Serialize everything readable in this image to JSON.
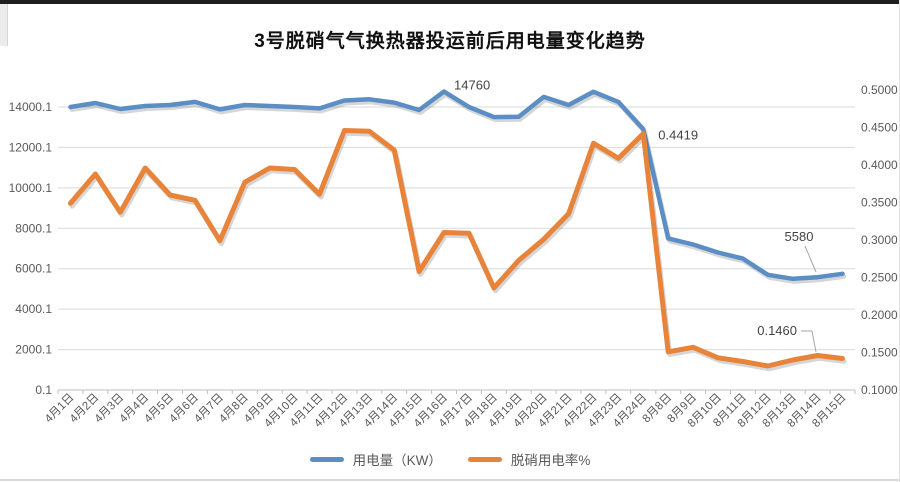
{
  "chart_data": {
    "type": "line",
    "title": "3号脱硝气气换热器投运前后用电量变化趋势",
    "grid": "horizontal",
    "legend_position": "bottom",
    "categories": [
      "4月1日",
      "4月2日",
      "4月3日",
      "4月4日",
      "4月5日",
      "4月6日",
      "4月7日",
      "4月8日",
      "4月9日",
      "4月10日",
      "4月11日",
      "4月12日",
      "4月13日",
      "4月14日",
      "4月15日",
      "4月16日",
      "4月17日",
      "4月18日",
      "4月19日",
      "4月20日",
      "4月21日",
      "4月22日",
      "4月23日",
      "4月24日",
      "8月8日",
      "8月9日",
      "8月10日",
      "8月11日",
      "8月12日",
      "8月13日",
      "8月14日",
      "8月15日"
    ],
    "series": [
      {
        "name": "用电量（KW）",
        "axis": "left",
        "color": "#5b8ec4",
        "values": [
          14000,
          14200,
          13900,
          14050,
          14100,
          14250,
          13880,
          14100,
          14050,
          14000,
          13930,
          14320,
          14380,
          14220,
          13850,
          14760,
          14000,
          13500,
          13520,
          14500,
          14100,
          14750,
          14250,
          12900,
          7500,
          7200,
          6800,
          6500,
          5700,
          5500,
          5580,
          5750
        ]
      },
      {
        "name": "脱硝用电率%",
        "axis": "right",
        "color": "#e8833a",
        "values": [
          0.349,
          0.388,
          0.337,
          0.396,
          0.36,
          0.353,
          0.299,
          0.377,
          0.396,
          0.394,
          0.361,
          0.446,
          0.445,
          0.42,
          0.258,
          0.31,
          0.309,
          0.236,
          0.273,
          0.301,
          0.335,
          0.429,
          0.409,
          0.4419,
          0.151,
          0.157,
          0.143,
          0.138,
          0.132,
          0.14,
          0.146,
          0.142
        ]
      }
    ],
    "left_axis": {
      "min": 0.1,
      "max": 14000.1,
      "step": 2000,
      "tick_labels": [
        "14000.1",
        "12000.1",
        "10000.1",
        "8000.1",
        "6000.1",
        "4000.1",
        "2000.1",
        "0.1"
      ]
    },
    "right_axis": {
      "min": 0.1,
      "max": 0.5,
      "step": 0.05,
      "tick_labels": [
        "0.5000",
        "0.4500",
        "0.4000",
        "0.3500",
        "0.3000",
        "0.2500",
        "0.2000",
        "0.1500",
        "0.1000"
      ]
    },
    "annotations": [
      {
        "series": 0,
        "index": 15,
        "text": "14760"
      },
      {
        "series": 1,
        "index": 23,
        "text": "0.4419"
      },
      {
        "series": 0,
        "index": 30,
        "text": "5580"
      },
      {
        "series": 1,
        "index": 30,
        "text": "0.1460"
      }
    ]
  }
}
